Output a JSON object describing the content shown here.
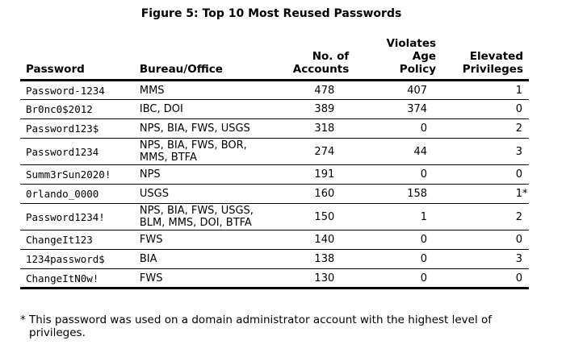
{
  "caption": "Figure 5: Top 10 Most Reused Passwords",
  "headers": {
    "password": "Password",
    "bureau": "Bureau/Office",
    "accounts": [
      "No. of",
      "Accounts"
    ],
    "violates": [
      "Violates Age",
      "Policy"
    ],
    "elevated": [
      "Elevated",
      "Privileges"
    ]
  },
  "rows": [
    {
      "password": "Password-1234",
      "bureau": [
        "MMS"
      ],
      "accounts": "478",
      "violates": "407",
      "elevated": "1"
    },
    {
      "password": "Br0nc0$2012",
      "bureau": [
        "IBC, DOI"
      ],
      "accounts": "389",
      "violates": "374",
      "elevated": "0"
    },
    {
      "password": "Password123$",
      "bureau": [
        "NPS, BIA, FWS, USGS"
      ],
      "accounts": "318",
      "violates": "0",
      "elevated": "2"
    },
    {
      "password": "Password1234",
      "bureau": [
        "NPS, BIA, FWS, BOR,",
        "MMS, BTFA"
      ],
      "accounts": "274",
      "violates": "44",
      "elevated": "3"
    },
    {
      "password": "Summ3rSun2020!",
      "bureau": [
        "NPS"
      ],
      "accounts": "191",
      "violates": "0",
      "elevated": "0"
    },
    {
      "password": "0rlando_0000",
      "bureau": [
        "USGS"
      ],
      "accounts": "160",
      "violates": "158",
      "elevated": "1",
      "mark": "*"
    },
    {
      "password": "Password1234!",
      "bureau": [
        "NPS, BIA, FWS, USGS,",
        "BLM, MMS, DOI, BTFA"
      ],
      "accounts": "150",
      "violates": "1",
      "elevated": "2"
    },
    {
      "password": "ChangeIt123",
      "bureau": [
        "FWS"
      ],
      "accounts": "140",
      "violates": "0",
      "elevated": "0"
    },
    {
      "password": "1234password$",
      "bureau": [
        "BIA"
      ],
      "accounts": "138",
      "violates": "0",
      "elevated": "3"
    },
    {
      "password": "ChangeItN0w!",
      "bureau": [
        "FWS"
      ],
      "accounts": "130",
      "violates": "0",
      "elevated": "0"
    }
  ],
  "footnote": [
    "* This password was used on a domain administrator account with the highest level of",
    "privileges."
  ]
}
